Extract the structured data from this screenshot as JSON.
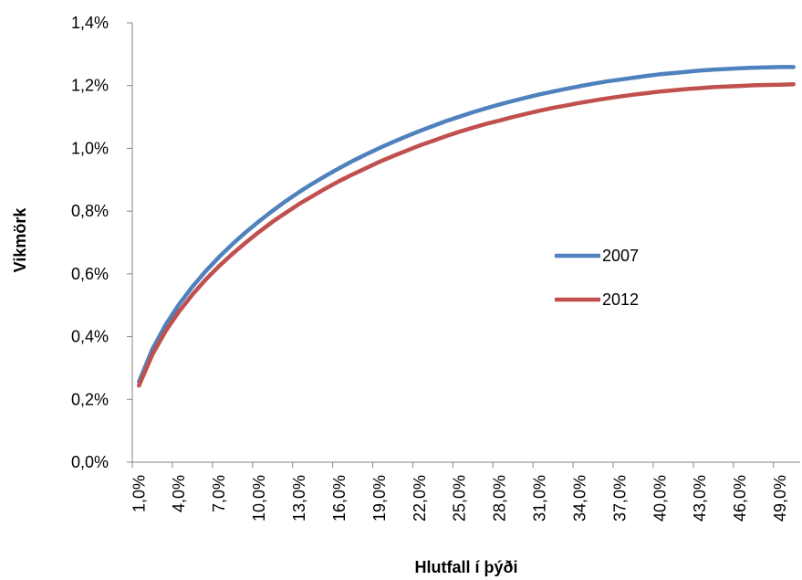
{
  "chart_data": {
    "type": "line",
    "title": "",
    "xlabel": "Hlutfall í þýði",
    "ylabel": "Vikmörk",
    "x": [
      "1,0%",
      "2,0%",
      "3,0%",
      "4,0%",
      "5,0%",
      "6,0%",
      "7,0%",
      "8,0%",
      "9,0%",
      "10,0%",
      "11,0%",
      "12,0%",
      "13,0%",
      "14,0%",
      "15,0%",
      "16,0%",
      "17,0%",
      "18,0%",
      "19,0%",
      "20,0%",
      "21,0%",
      "22,0%",
      "23,0%",
      "24,0%",
      "25,0%",
      "26,0%",
      "27,0%",
      "28,0%",
      "29,0%",
      "30,0%",
      "31,0%",
      "32,0%",
      "33,0%",
      "34,0%",
      "35,0%",
      "36,0%",
      "37,0%",
      "38,0%",
      "39,0%",
      "40,0%",
      "41,0%",
      "42,0%",
      "43,0%",
      "44,0%",
      "45,0%",
      "46,0%",
      "47,0%",
      "48,0%",
      "49,0%",
      "50,0%"
    ],
    "x_tick_labels": [
      "1,0%",
      "4,0%",
      "7,0%",
      "10,0%",
      "13,0%",
      "16,0%",
      "19,0%",
      "22,0%",
      "25,0%",
      "28,0%",
      "31,0%",
      "34,0%",
      "37,0%",
      "40,0%",
      "43,0%",
      "46,0%",
      "49,0%"
    ],
    "y_tick_labels": [
      "0,0%",
      "0,2%",
      "0,4%",
      "0,6%",
      "0,8%",
      "1,0%",
      "1,2%",
      "1,4%"
    ],
    "ylim": [
      0,
      1.4
    ],
    "y_unit": "%",
    "grid": false,
    "legend_position": "right-middle",
    "series": [
      {
        "name": "2007",
        "color": "#4F81BD",
        "values": [
          0.256,
          0.36,
          0.438,
          0.503,
          0.559,
          0.609,
          0.654,
          0.695,
          0.733,
          0.768,
          0.801,
          0.832,
          0.861,
          0.888,
          0.913,
          0.937,
          0.96,
          0.981,
          1.001,
          1.02,
          1.038,
          1.055,
          1.071,
          1.087,
          1.101,
          1.115,
          1.128,
          1.14,
          1.151,
          1.162,
          1.172,
          1.181,
          1.19,
          1.198,
          1.206,
          1.213,
          1.219,
          1.225,
          1.231,
          1.236,
          1.24,
          1.244,
          1.248,
          1.251,
          1.253,
          1.255,
          1.257,
          1.258,
          1.259,
          1.259
        ]
      },
      {
        "name": "2012",
        "color": "#C0504D",
        "values": [
          0.244,
          0.343,
          0.418,
          0.48,
          0.534,
          0.582,
          0.625,
          0.664,
          0.7,
          0.734,
          0.766,
          0.795,
          0.823,
          0.848,
          0.873,
          0.896,
          0.917,
          0.937,
          0.957,
          0.975,
          0.992,
          1.009,
          1.024,
          1.039,
          1.053,
          1.066,
          1.078,
          1.089,
          1.1,
          1.11,
          1.12,
          1.129,
          1.137,
          1.145,
          1.152,
          1.159,
          1.165,
          1.171,
          1.176,
          1.181,
          1.185,
          1.189,
          1.192,
          1.195,
          1.197,
          1.199,
          1.201,
          1.202,
          1.203,
          1.204
        ]
      }
    ]
  }
}
